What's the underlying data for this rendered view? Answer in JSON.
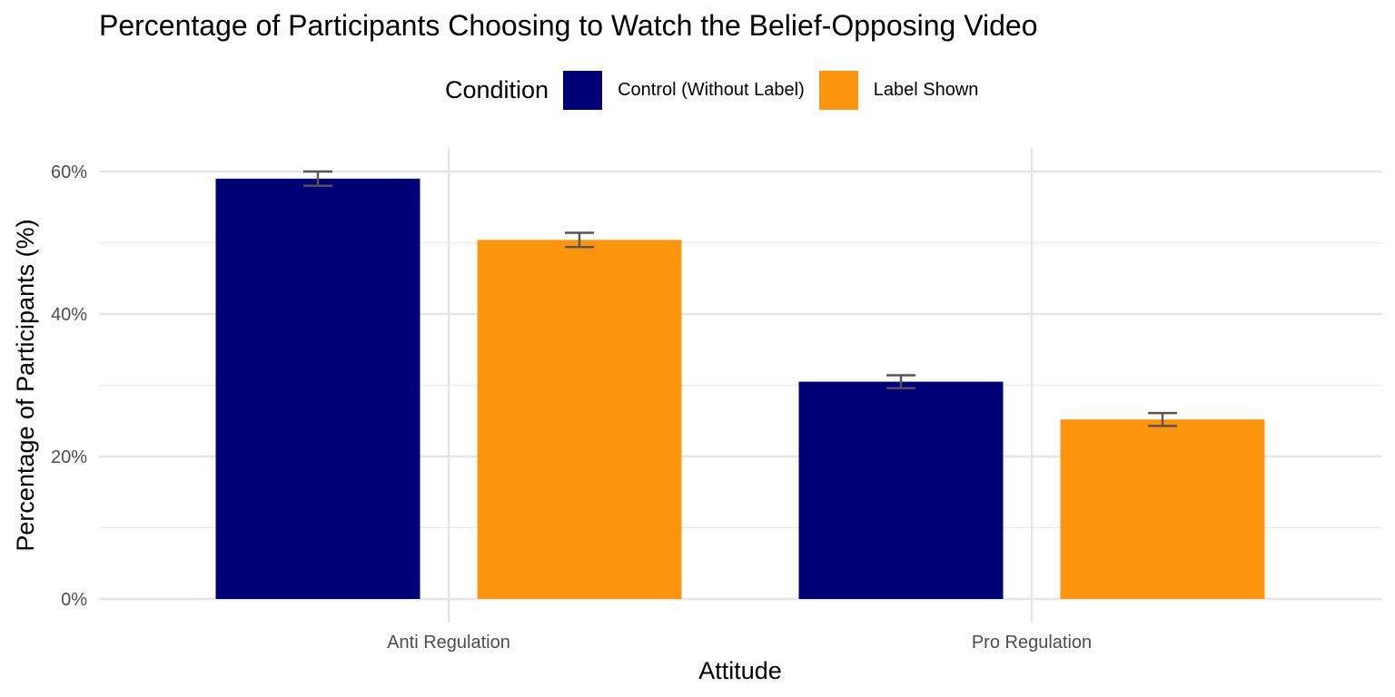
{
  "chart_data": {
    "type": "bar",
    "title": "Percentage of Participants Choosing to Watch the Belief-Opposing Video",
    "xlabel": "Attitude",
    "ylabel": "Percentage of Participants (%)",
    "categories": [
      "Anti Regulation",
      "Pro Regulation"
    ],
    "series": [
      {
        "name": "Control (Without Label)",
        "color": "#000077",
        "values": [
          59.0,
          30.5
        ],
        "error": [
          1.0,
          0.9
        ]
      },
      {
        "name": "Label Shown",
        "color": "#FC940E",
        "values": [
          50.4,
          25.2
        ],
        "error": [
          1.0,
          0.9
        ]
      }
    ],
    "ylim": [
      0,
      60
    ],
    "yticks": [
      0,
      20,
      40,
      60
    ],
    "ytick_labels": [
      "0%",
      "20%",
      "40%",
      "60%"
    ],
    "legend": {
      "title": "Condition",
      "position": "top"
    },
    "grid": true
  }
}
